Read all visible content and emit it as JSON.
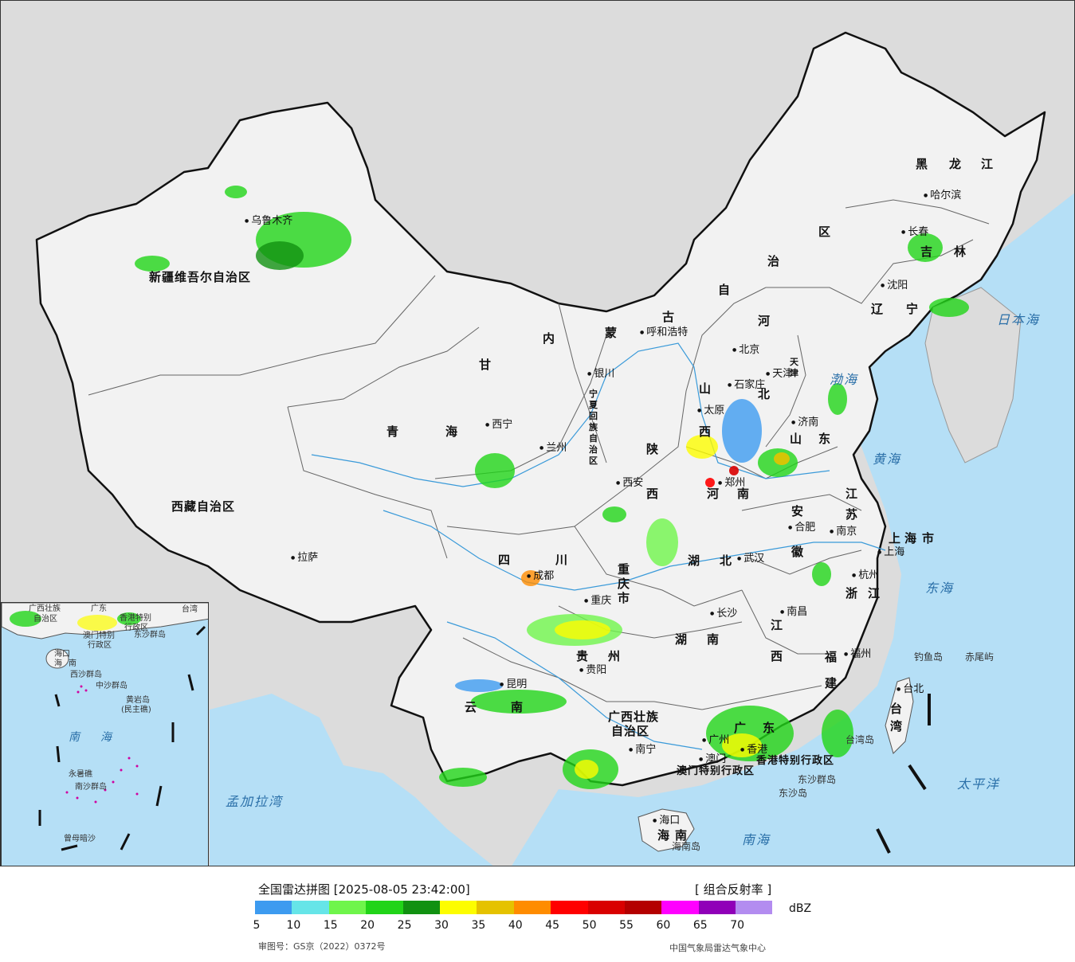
{
  "legend": {
    "title": "全国雷达拼图 [2025-08-05 23:42:00]",
    "product": "[ 组合反射率 ]",
    "unit": "dBZ",
    "colors": [
      "#3d9bf0",
      "#66e5e8",
      "#6ff54b",
      "#21d418",
      "#119111",
      "#fdfd00",
      "#e5c200",
      "#ff8c00",
      "#ff0000",
      "#d90000",
      "#b40000",
      "#ff00ff",
      "#9000b8",
      "#b38cf0"
    ],
    "ticks": [
      "5",
      "10",
      "15",
      "20",
      "25",
      "30",
      "35",
      "40",
      "45",
      "50",
      "55",
      "60",
      "65",
      "70"
    ],
    "approval": "审图号：GS京（2022）0372号",
    "organization": "中国气象局雷达气象中心"
  },
  "map": {
    "provinces": [
      "新疆维吾尔自治区",
      "西藏自治区",
      "青",
      "海",
      "甘",
      "内",
      "蒙",
      "古",
      "自",
      "治",
      "区",
      "黑",
      "龙",
      "江",
      "吉",
      "林",
      "辽",
      "宁",
      "河",
      "北",
      "山",
      "东",
      "山",
      "西",
      "陕",
      "西",
      "河",
      "南",
      "四",
      "川",
      "湖",
      "北",
      "湖",
      "南",
      "江",
      "西",
      "安",
      "徽",
      "江",
      "苏",
      "浙",
      "江",
      "福",
      "建",
      "贵",
      "州",
      "云",
      "南",
      "广",
      "东",
      "海",
      "南",
      "宁",
      "夏",
      "回",
      "族",
      "自",
      "治",
      "区",
      "重",
      "庆",
      "市",
      "上",
      "海",
      "市",
      "广西壮族",
      "自治区",
      "台",
      "湾",
      "天",
      "津"
    ],
    "cities": [
      "乌鲁木齐",
      "拉萨",
      "西宁",
      "兰州",
      "银川",
      "呼和浩特",
      "北京",
      "天津",
      "石家庄",
      "太原",
      "济南",
      "西安",
      "郑州",
      "合肥",
      "南京",
      "上海",
      "杭州",
      "武汉",
      "成都",
      "重庆",
      "长沙",
      "南昌",
      "福州",
      "贵阳",
      "昆明",
      "南宁",
      "广州",
      "海口",
      "哈尔滨",
      "长春",
      "沈阳",
      "台北",
      "香港",
      "澳门"
    ],
    "seas": [
      "日本海",
      "渤海",
      "黄海",
      "东海",
      "太平洋",
      "南海",
      "孟加拉湾"
    ],
    "islands": [
      "钓鱼岛",
      "赤尾屿",
      "台湾岛",
      "东沙群岛",
      "东沙岛",
      "海南岛",
      "香港特别行政区",
      "澳门特别行政区"
    ],
    "capital_label": "北京"
  },
  "inset": {
    "labels": [
      "广西壮族",
      "自治区",
      "广东",
      "香港特别",
      "行政区",
      "台湾",
      "澳门特别",
      "行政区",
      "东沙群岛",
      "海口",
      "海",
      "南",
      "西沙群岛",
      "中沙群岛",
      "黄岩岛",
      "(民主礁)",
      "南",
      "海",
      "永暑礁",
      "南沙群岛",
      "曾母暗沙"
    ]
  }
}
